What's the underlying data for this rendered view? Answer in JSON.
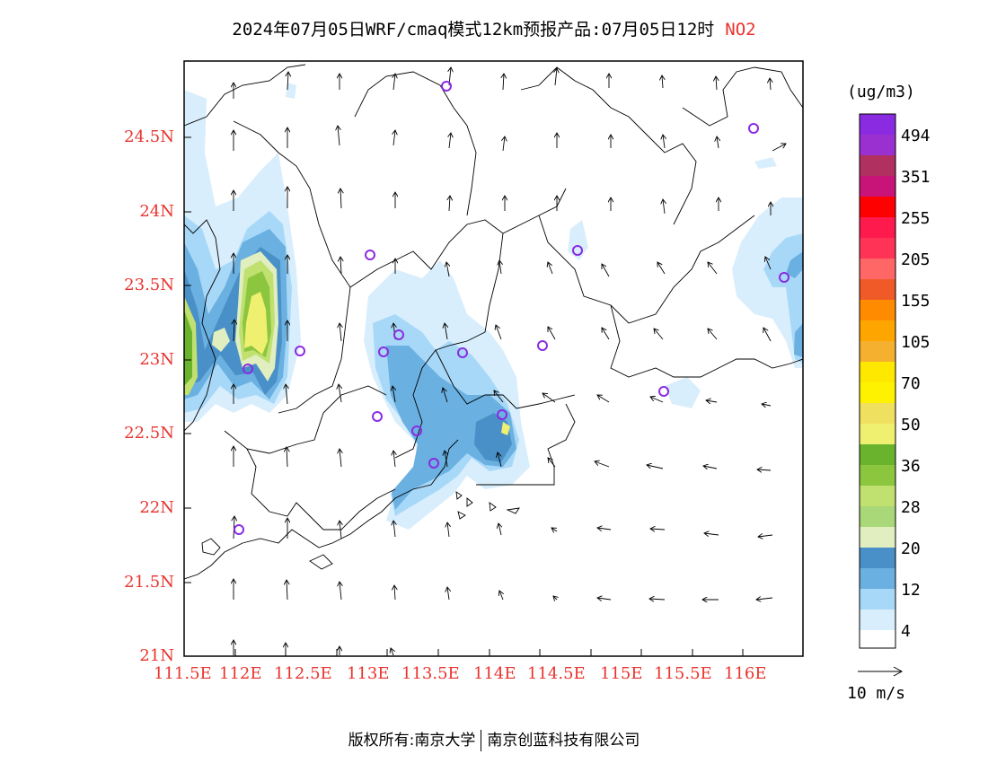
{
  "header": {
    "title": "2024年07月05日WRF/cmaq模式12km预报产品:07月05日12时",
    "pollutant": "NO2"
  },
  "axes": {
    "lat_labels": [
      "24.5N",
      "24N",
      "23.5N",
      "23N",
      "22.5N",
      "22N",
      "21.5N",
      "21N"
    ],
    "lon_labels": [
      "111.5E",
      "112E",
      "112.5E",
      "113E",
      "113.5E",
      "114E",
      "114.5E",
      "115E",
      "115.5E",
      "116E"
    ]
  },
  "colorbar": {
    "units": "(ug/m3)",
    "labels": [
      "494",
      "351",
      "255",
      "205",
      "155",
      "105",
      "70",
      "50",
      "36",
      "28",
      "20",
      "12",
      "4"
    ],
    "colors_top_to_bottom": [
      "#8a2be2",
      "#9b30d0",
      "#b03060",
      "#c81478",
      "#ff0000",
      "#ff1a4d",
      "#ff3355",
      "#ff6666",
      "#f05a28",
      "#ff8c00",
      "#ffa500",
      "#f5b030",
      "#ffe800",
      "#fff200",
      "#f0e060",
      "#f0f070",
      "#6ab42d",
      "#8cc63f",
      "#c0e070",
      "#a8d878",
      "#e0eec0",
      "#4a90c8",
      "#6ab0e0",
      "#a8d8f8",
      "#d8eefc",
      "#ffffff"
    ]
  },
  "wind_legend": {
    "label": "10 m/s"
  },
  "footer": {
    "copyright": "版权所有:南京大学",
    "company": "南京创蓝科技有限公司"
  },
  "colors": {
    "axis_label": "#e8332e",
    "station_marker": "#8a2be2"
  }
}
